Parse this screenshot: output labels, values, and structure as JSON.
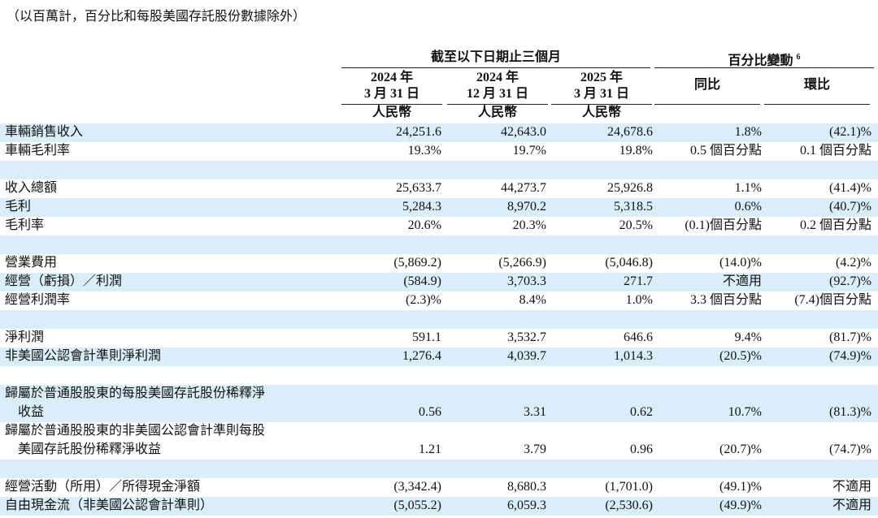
{
  "note": "（以百萬計，百分比和每股美國存託股份數據除外）",
  "header": {
    "period": "截至以下日期止三個月",
    "change": "百分比變動",
    "change_note": "6",
    "dates": [
      [
        "2024 年",
        "3 月 31 日"
      ],
      [
        "2024 年",
        "12 月 31 日"
      ],
      [
        "2025 年",
        "3 月 31 日"
      ]
    ],
    "currency": [
      "人民幣",
      "人民幣",
      "人民幣"
    ],
    "change_cols": [
      "同比",
      "環比"
    ]
  },
  "sections": [
    [
      {
        "label": [
          "車輛銷售收入"
        ],
        "values": [
          "24,251.6",
          "42,643.0",
          "24,678.6",
          "1.8%",
          "(42.1)%"
        ]
      },
      {
        "label": [
          "車輛毛利率"
        ],
        "values": [
          "19.3%",
          "19.7%",
          "19.8%",
          "0.5 個百分點",
          "0.1 個百分點"
        ]
      }
    ],
    [
      {
        "label": [
          "收入總額"
        ],
        "values": [
          "25,633.7",
          "44,273.7",
          "25,926.8",
          "1.1%",
          "(41.4)%"
        ]
      },
      {
        "label": [
          "毛利"
        ],
        "values": [
          "5,284.3",
          "8,970.2",
          "5,318.5",
          "0.6%",
          "(40.7)%"
        ]
      },
      {
        "label": [
          "毛利率"
        ],
        "values": [
          "20.6%",
          "20.3%",
          "20.5%",
          "(0.1)個百分點",
          "0.2 個百分點"
        ]
      }
    ],
    [
      {
        "label": [
          "營業費用"
        ],
        "values": [
          "(5,869.2)",
          "(5,266.9)",
          "(5,046.8)",
          "(14.0)%",
          "(4.2)%"
        ]
      },
      {
        "label": [
          "經營（虧損）／利潤"
        ],
        "values": [
          "(584.9)",
          "3,703.3",
          "271.7",
          "不適用",
          "(92.7)%"
        ]
      },
      {
        "label": [
          "經營利潤率"
        ],
        "values": [
          "(2.3)%",
          "8.4%",
          "1.0%",
          "3.3 個百分點",
          "(7.4)個百分點"
        ]
      }
    ],
    [
      {
        "label": [
          "淨利潤"
        ],
        "values": [
          "591.1",
          "3,532.7",
          "646.6",
          "9.4%",
          "(81.7)%"
        ]
      },
      {
        "label": [
          "非美國公認會計準則淨利潤"
        ],
        "values": [
          "1,276.4",
          "4,039.7",
          "1,014.3",
          "(20.5)%",
          "(74.9)%"
        ]
      }
    ],
    [
      {
        "label": [
          "歸屬於普通股股東的每股美國存託股份稀釋淨",
          "收益"
        ],
        "values": [
          "0.56",
          "3.31",
          "0.62",
          "10.7%",
          "(81.3)%"
        ]
      },
      {
        "label": [
          "歸屬於普通股股東的非美國公認會計準則每股",
          "美國存託股份稀釋淨收益"
        ],
        "values": [
          "1.21",
          "3.79",
          "0.96",
          "(20.7)%",
          "(74.7)%"
        ]
      }
    ],
    [
      {
        "label": [
          "經營活動（所用）／所得現金淨額"
        ],
        "values": [
          "(3,342.4)",
          "8,680.3",
          "(1,701.0)",
          "(49.1)%",
          "不適用"
        ]
      },
      {
        "label": [
          "自由現金流（非美國公認會計準則）"
        ],
        "values": [
          "(5,055.2)",
          "6,059.3",
          "(2,530.6)",
          "(49.9)%",
          "不適用"
        ]
      }
    ]
  ]
}
